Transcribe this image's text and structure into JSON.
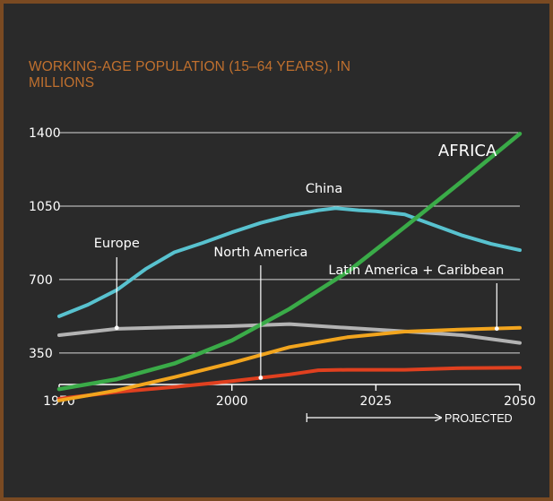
{
  "chart_data": {
    "type": "line",
    "title": "WORKING-AGE POPULATION (15–64 YEARS), IN MILLIONS",
    "x_ticks": [
      1970,
      2000,
      2025,
      2050
    ],
    "y_ticks": [
      350,
      700,
      1050,
      1400
    ],
    "xlim": [
      1970,
      2050
    ],
    "ylim": [
      200,
      1400
    ],
    "grid": true,
    "projected_from": 2013,
    "projected_label": "PROJECTED",
    "series": [
      {
        "name": "AFRICA",
        "color": "#3aab48",
        "x": [
          1970,
          1980,
          1990,
          2000,
          2010,
          2020,
          2030,
          2040,
          2050
        ],
        "y": [
          178,
          225,
          300,
          410,
          560,
          735,
          950,
          1170,
          1395
        ]
      },
      {
        "name": "China",
        "color": "#58c2cf",
        "x": [
          1970,
          1975,
          1980,
          1985,
          1990,
          1995,
          2000,
          2005,
          2010,
          2015,
          2018,
          2022,
          2025,
          2030,
          2035,
          2040,
          2045,
          2050
        ],
        "y": [
          525,
          580,
          650,
          750,
          830,
          875,
          925,
          970,
          1005,
          1030,
          1040,
          1030,
          1025,
          1010,
          960,
          910,
          870,
          840
        ]
      },
      {
        "name": "Europe",
        "color": "#b3b3b3",
        "x": [
          1970,
          1980,
          1990,
          2000,
          2010,
          2020,
          2030,
          2040,
          2050
        ],
        "y": [
          435,
          465,
          473,
          478,
          488,
          470,
          453,
          435,
          398
        ]
      },
      {
        "name": "Latin America + Caribbean",
        "color": "#f2a51e",
        "x": [
          1970,
          1980,
          1990,
          2000,
          2010,
          2020,
          2030,
          2040,
          2050
        ],
        "y": [
          124,
          172,
          235,
          303,
          378,
          425,
          452,
          462,
          470
        ]
      },
      {
        "name": "North America",
        "color": "#e0401f",
        "x": [
          1970,
          1980,
          1990,
          2000,
          2010,
          2015,
          2020,
          2030,
          2040,
          2050
        ],
        "y": [
          132,
          164,
          188,
          216,
          248,
          268,
          270,
          270,
          278,
          280
        ]
      }
    ]
  }
}
